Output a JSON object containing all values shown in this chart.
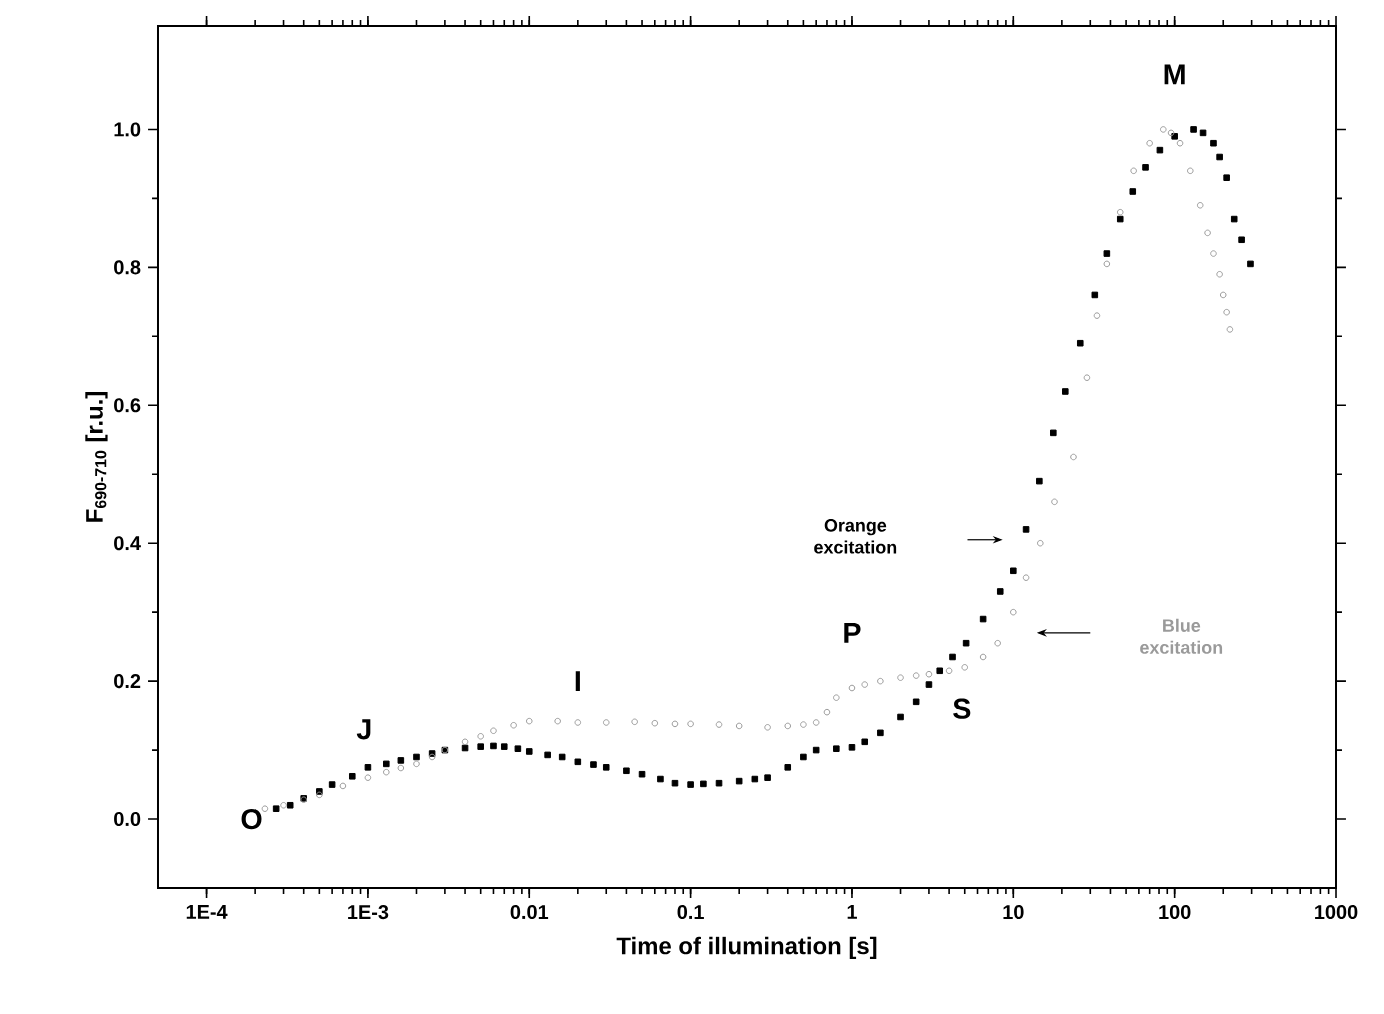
{
  "chart_data": {
    "type": "scatter",
    "xlabel": "Time of illumination [s]",
    "ylabel": "F$_{690-710}$ [r.u.]",
    "log": "x",
    "legend": false,
    "grid": false,
    "xlim": [
      5e-05,
      1000
    ],
    "ylim": [
      -0.1,
      1.15
    ],
    "xticks": [
      {
        "value": 0.0001,
        "label": "1E-4"
      },
      {
        "value": 0.001,
        "label": "1E-3"
      },
      0.01,
      0.1,
      1,
      10,
      100,
      1000
    ],
    "yticks": [
      {
        "value": 0,
        "label": "0.0"
      },
      {
        "value": 0.2,
        "label": "0.2"
      },
      {
        "value": 0.4,
        "label": "0.4"
      },
      {
        "value": 0.6,
        "label": "0.6"
      },
      {
        "value": 0.8,
        "label": "0.8"
      },
      {
        "value": 1,
        "label": "1.0"
      }
    ],
    "series": [
      {
        "name": "Orange excitation",
        "color": "#000000",
        "marker": "square",
        "x": [
          0.00027,
          0.00033,
          0.0004,
          0.0005,
          0.0006,
          0.0008,
          0.001,
          0.0013,
          0.0016,
          0.002,
          0.0025,
          0.003,
          0.004,
          0.005,
          0.006,
          0.007,
          0.0085,
          0.01,
          0.013,
          0.016,
          0.02,
          0.025,
          0.03,
          0.04,
          0.05,
          0.065,
          0.08,
          0.1,
          0.12,
          0.15,
          0.2,
          0.25,
          0.3,
          0.4,
          0.5,
          0.6,
          0.8,
          1,
          1.2,
          1.5,
          2,
          2.5,
          3,
          3.5,
          4.2,
          5.1,
          6.5,
          8.3,
          10,
          12,
          14.5,
          17.7,
          21,
          26,
          32,
          38,
          46,
          55,
          66,
          81,
          100,
          131,
          150,
          174,
          190,
          210,
          234,
          260,
          295
        ],
        "values": [
          0.015,
          0.02,
          0.03,
          0.04,
          0.05,
          0.062,
          0.075,
          0.08,
          0.085,
          0.09,
          0.095,
          0.1,
          0.103,
          0.105,
          0.106,
          0.105,
          0.102,
          0.098,
          0.093,
          0.09,
          0.083,
          0.079,
          0.075,
          0.07,
          0.065,
          0.058,
          0.052,
          0.05,
          0.051,
          0.052,
          0.055,
          0.058,
          0.06,
          0.075,
          0.09,
          0.1,
          0.102,
          0.104,
          0.112,
          0.125,
          0.148,
          0.17,
          0.195,
          0.215,
          0.235,
          0.255,
          0.29,
          0.33,
          0.36,
          0.42,
          0.49,
          0.56,
          0.62,
          0.69,
          0.76,
          0.82,
          0.87,
          0.91,
          0.945,
          0.97,
          0.99,
          1.0,
          0.995,
          0.98,
          0.96,
          0.93,
          0.87,
          0.84,
          0.805
        ]
      },
      {
        "name": "Blue excitation",
        "color": "#9a9a9a",
        "marker": "circle",
        "x": [
          0.00023,
          0.0003,
          0.0004,
          0.0005,
          0.0007,
          0.001,
          0.0013,
          0.0016,
          0.002,
          0.0025,
          0.003,
          0.004,
          0.005,
          0.006,
          0.008,
          0.01,
          0.015,
          0.02,
          0.03,
          0.045,
          0.06,
          0.08,
          0.1,
          0.15,
          0.2,
          0.3,
          0.4,
          0.5,
          0.6,
          0.7,
          0.8,
          1,
          1.2,
          1.5,
          2,
          2.5,
          3,
          4,
          5,
          6.5,
          8,
          10,
          12,
          14.7,
          18,
          23.6,
          28.6,
          33,
          38,
          46,
          55.7,
          70,
          85,
          95,
          108,
          125,
          144,
          160,
          174,
          190,
          200,
          210,
          220
        ],
        "values": [
          0.015,
          0.02,
          0.028,
          0.035,
          0.048,
          0.06,
          0.068,
          0.074,
          0.08,
          0.09,
          0.1,
          0.112,
          0.12,
          0.128,
          0.136,
          0.142,
          0.142,
          0.14,
          0.14,
          0.141,
          0.139,
          0.138,
          0.138,
          0.137,
          0.135,
          0.133,
          0.135,
          0.137,
          0.14,
          0.155,
          0.176,
          0.19,
          0.195,
          0.2,
          0.205,
          0.208,
          0.21,
          0.215,
          0.22,
          0.235,
          0.255,
          0.3,
          0.35,
          0.4,
          0.46,
          0.525,
          0.64,
          0.73,
          0.805,
          0.88,
          0.94,
          0.98,
          1.0,
          0.995,
          0.98,
          0.94,
          0.89,
          0.85,
          0.82,
          0.79,
          0.76,
          0.735,
          0.71
        ]
      }
    ],
    "annotations": [
      "O",
      "J",
      "I",
      "P",
      "S",
      "M"
    ]
  }
}
